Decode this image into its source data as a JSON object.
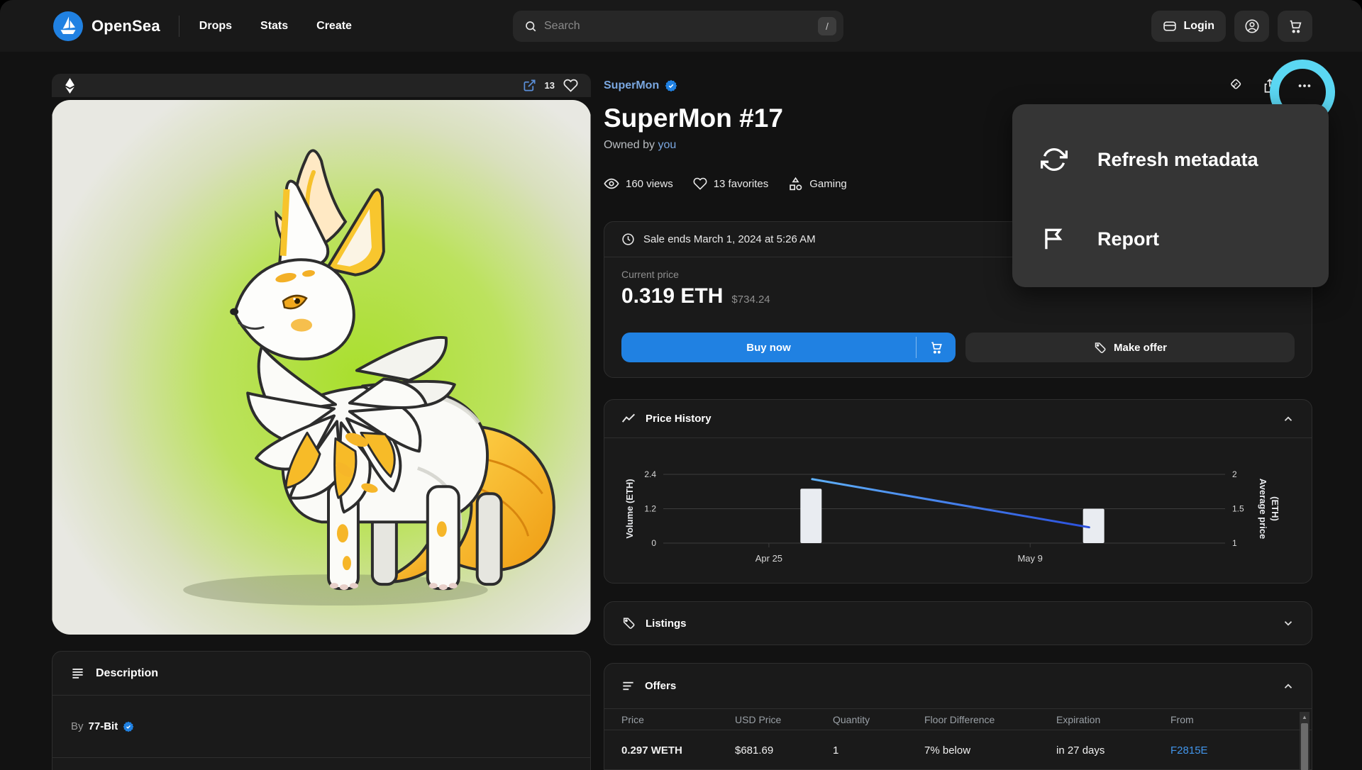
{
  "nav": {
    "brand": "OpenSea",
    "items": [
      {
        "label": "Drops"
      },
      {
        "label": "Stats"
      },
      {
        "label": "Create"
      }
    ],
    "search": {
      "placeholder": "Search",
      "shortcut": "/"
    },
    "login_label": "Login"
  },
  "media": {
    "favorites_count": "13"
  },
  "item": {
    "collection": "SuperMon",
    "title": "SuperMon #17",
    "owned_by_prefix": "Owned by",
    "owner": "you",
    "views": "160 views",
    "favorites": "13 favorites",
    "category": "Gaming"
  },
  "sale": {
    "ends_text": "Sale ends March 1, 2024 at 5:26 AM",
    "current_price_label": "Current price",
    "price_eth": "0.319 ETH",
    "price_usd": "$734.24",
    "buy_now_label": "Buy now",
    "make_offer_label": "Make offer"
  },
  "sections": {
    "price_history": "Price History",
    "listings": "Listings",
    "offers": "Offers",
    "description": "Description"
  },
  "offers_table": {
    "columns": [
      "Price",
      "USD Price",
      "Quantity",
      "Floor Difference",
      "Expiration",
      "From"
    ],
    "rows": [
      {
        "price": "0.297 WETH",
        "usd": "$681.69",
        "qty": "1",
        "floor_diff": "7% below",
        "expiration": "in 27 days",
        "from": "F2815E"
      }
    ]
  },
  "description": {
    "by_prefix": "By",
    "creator": "77-Bit"
  },
  "menu": {
    "items": [
      {
        "label": "Refresh metadata"
      },
      {
        "label": "Report"
      }
    ]
  },
  "chart_data": {
    "type": "combo",
    "title": "Price History",
    "x_ticks": [
      "Apr 25",
      "May 9"
    ],
    "x_tick_pos": [
      0.188,
      0.653
    ],
    "left_axis": {
      "label": "Volume (ETH)",
      "ticks": [
        2.4,
        1.2,
        0
      ],
      "range": [
        0,
        2.4
      ]
    },
    "right_axis": {
      "label": "Average price (ETH)",
      "label_lines": [
        "Average price",
        "(ETH)"
      ],
      "ticks": [
        2,
        1.5,
        1
      ],
      "range": [
        1,
        2
      ]
    },
    "volume_bars": [
      {
        "x": "Apr 25",
        "pos": 0.263,
        "value": 1.9
      },
      {
        "x": "May 9",
        "pos": 0.766,
        "value": 1.2
      }
    ],
    "avg_price_line": [
      {
        "x": "Apr 25",
        "pos": 0.265,
        "value": 1.93
      },
      {
        "x": "May 9",
        "pos": 0.758,
        "value": 1.23
      }
    ],
    "grid": true,
    "legend": "none"
  },
  "colors": {
    "accent_blue": "#2081e2",
    "link_blue": "#7aa7e0",
    "highlight_cyan": "#5bd7f3",
    "bar_fill": "#e9ecf1"
  }
}
